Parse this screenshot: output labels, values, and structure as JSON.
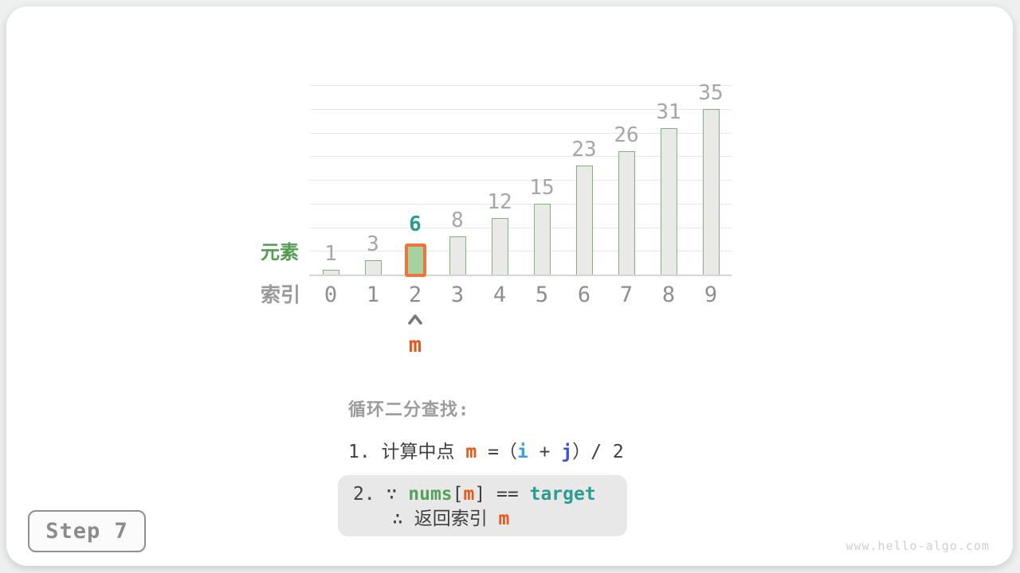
{
  "chart_data": {
    "type": "bar",
    "title": "",
    "xlabel": "",
    "ylabel": "",
    "categories": [
      "0",
      "1",
      "2",
      "3",
      "4",
      "5",
      "6",
      "7",
      "8",
      "9"
    ],
    "values": [
      1,
      3,
      6,
      8,
      12,
      15,
      23,
      26,
      31,
      35
    ],
    "ylim": [
      0,
      40
    ],
    "grid_step": 5,
    "grid": "on",
    "legend_position": "none",
    "highlight_index": 2,
    "highlight_value_label": "6",
    "row_labels": {
      "elements": "元素",
      "indices": "索引"
    },
    "pointer": {
      "label": "m",
      "points_to_index": "2"
    },
    "colors": {
      "bar_fill": "#e9eae8",
      "bar_stroke": "#7cb577",
      "active_fill": "#a6d2a1",
      "active_border": "#f0743a",
      "value_label": "#a6a6a6",
      "active_value_label": "#2a9d8f",
      "index_label": "#8e8e8e",
      "elements_label_color": "#519c50",
      "indices_label_color": "#9a9a9a",
      "pointer_color": "#e4581b"
    }
  },
  "caption": {
    "heading": "循环二分查找:",
    "line1": [
      {
        "t": "1. 计算中点 ",
        "c": "plain"
      },
      {
        "t": "m",
        "c": "m"
      },
      {
        "t": " =（",
        "c": "plain"
      },
      {
        "t": "i",
        "c": "i"
      },
      {
        "t": " + ",
        "c": "plain"
      },
      {
        "t": "j",
        "c": "j"
      },
      {
        "t": "）/ 2",
        "c": "plain"
      }
    ],
    "box_line1": [
      {
        "t": "2. ∵ ",
        "c": "plain"
      },
      {
        "t": "nums",
        "c": "nums"
      },
      {
        "t": "[",
        "c": "plain"
      },
      {
        "t": "m",
        "c": "m"
      },
      {
        "t": "] == ",
        "c": "plain"
      },
      {
        "t": "target",
        "c": "target"
      }
    ],
    "box_line2": [
      {
        "t": "∴ 返回索引 ",
        "c": "plain"
      },
      {
        "t": "m",
        "c": "m"
      }
    ]
  },
  "footer": {
    "step_label": "Step 7",
    "watermark": "www.hello-algo.com"
  }
}
